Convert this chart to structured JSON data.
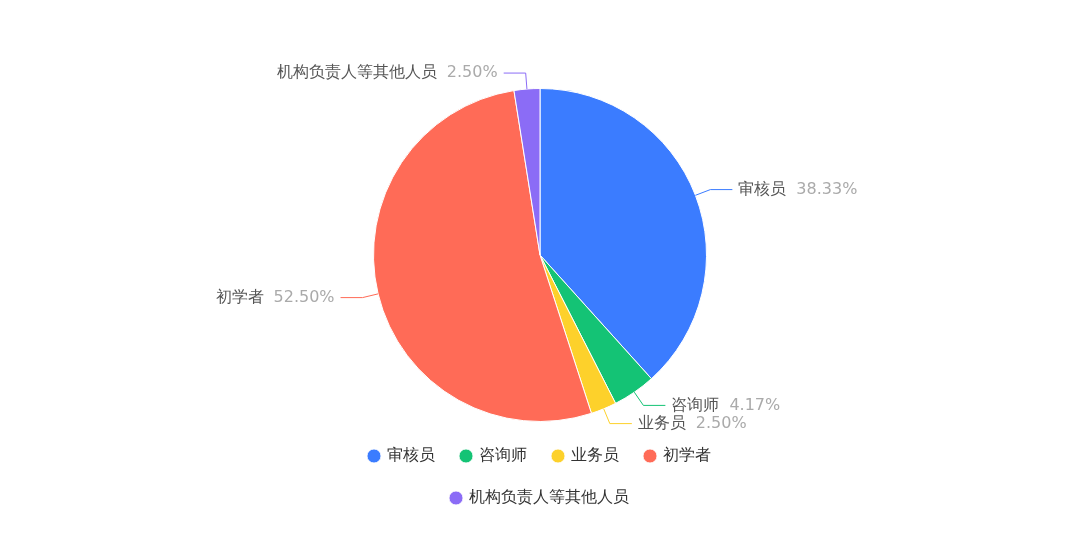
{
  "chart_data": {
    "type": "pie",
    "categories": [
      "审核员",
      "咨询师",
      "业务员",
      "初学者",
      "机构负责人等其他人员"
    ],
    "values": [
      38.33,
      4.17,
      2.5,
      52.5,
      2.5
    ],
    "value_labels": [
      "38.33%",
      "4.17%",
      "2.50%",
      "52.50%",
      "2.50%"
    ],
    "colors": [
      "#3b7cff",
      "#14c375",
      "#fdd12b",
      "#ff6b57",
      "#8b6cf6"
    ],
    "data_labels": true,
    "legend": "bottom"
  }
}
